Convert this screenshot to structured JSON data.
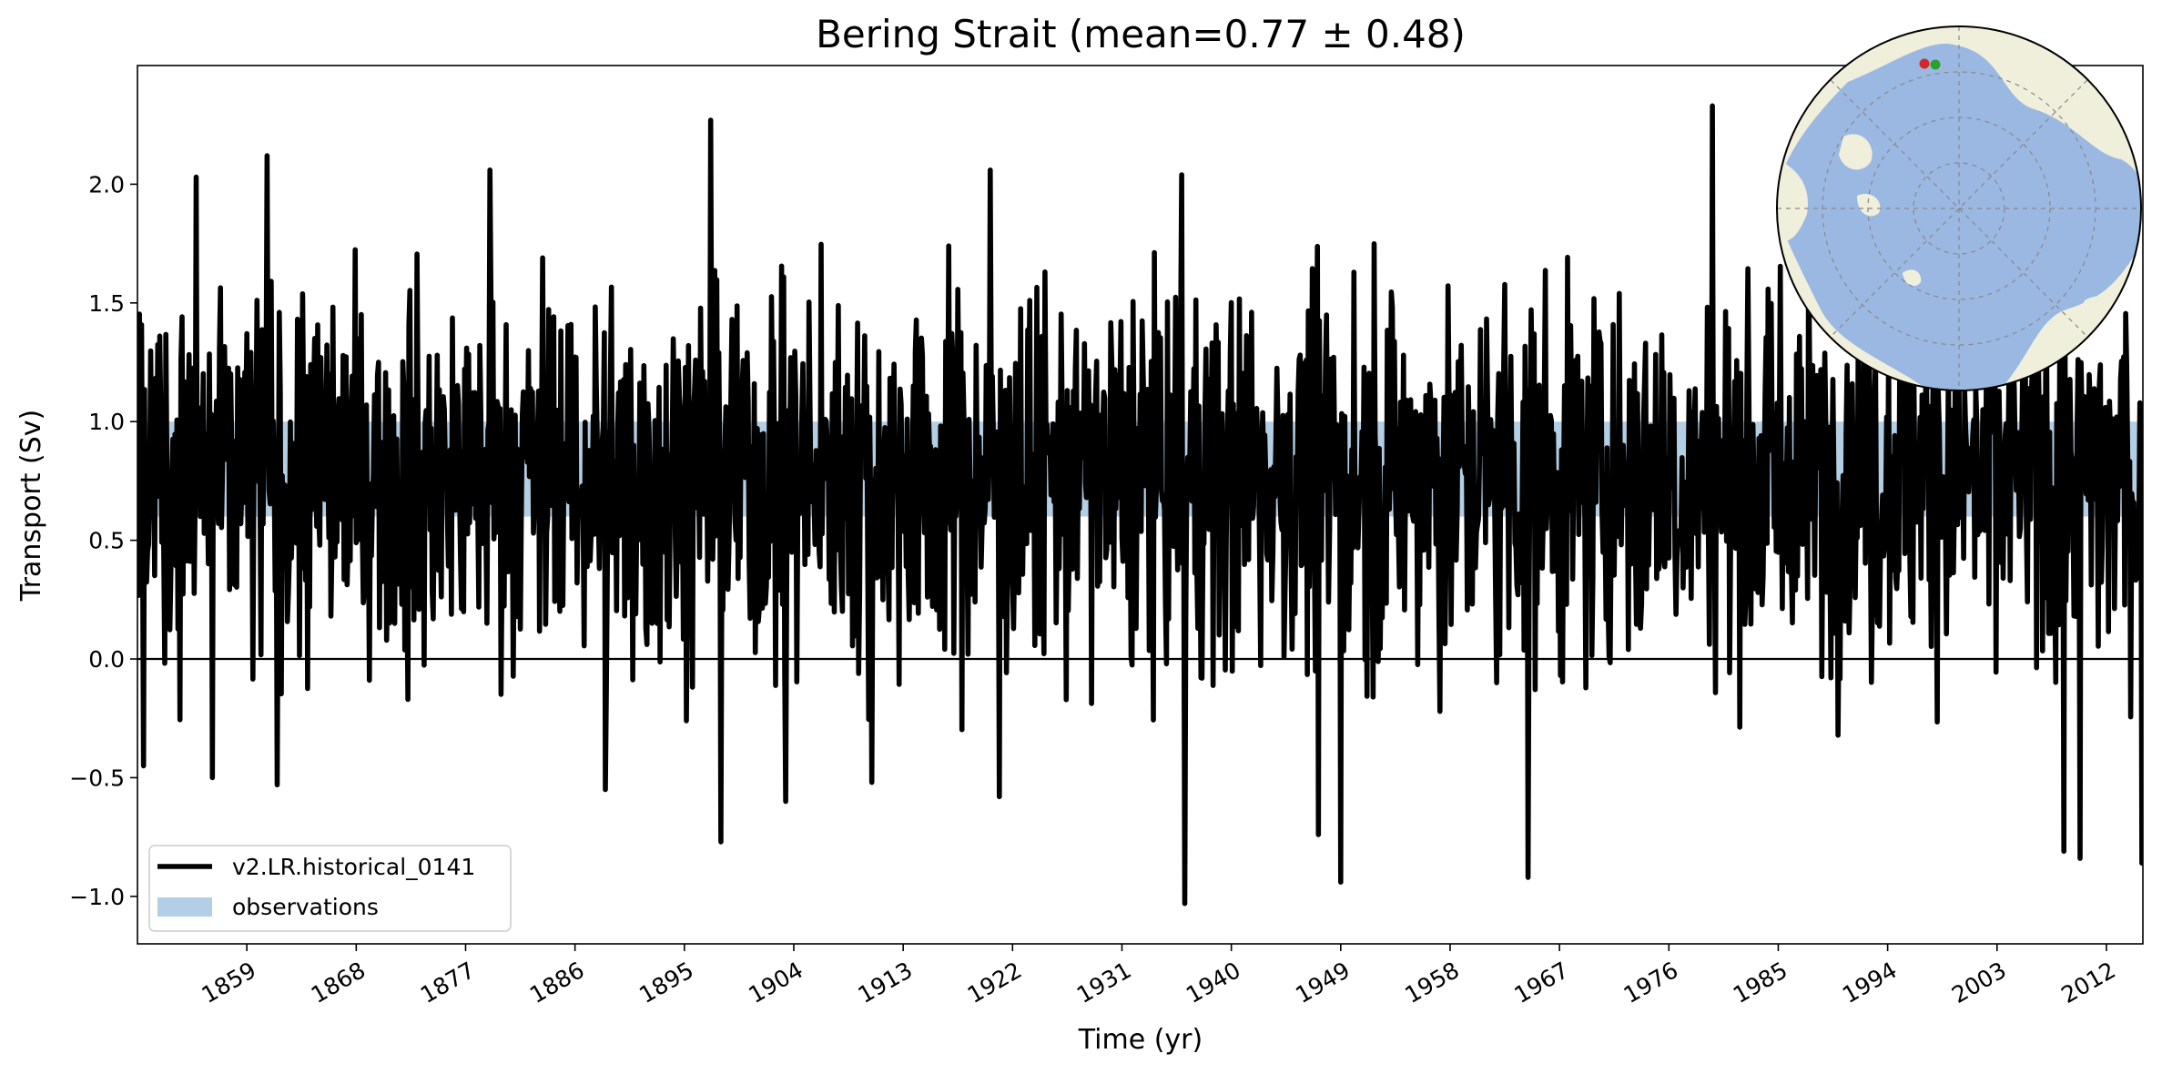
{
  "chart_data": {
    "type": "line",
    "title": "Bering Strait (mean=0.77 ± 0.48)",
    "xlabel": "Time (yr)",
    "ylabel": "Transport (Sv)",
    "xlim": [
      1850,
      2015
    ],
    "ylim": [
      -1.2,
      2.5
    ],
    "yticks": [
      -1.0,
      -0.5,
      0.0,
      0.5,
      1.0,
      1.5,
      2.0
    ],
    "ytick_labels": [
      "−1.0",
      "−0.5",
      "0.0",
      "0.5",
      "1.0",
      "1.5",
      "2.0"
    ],
    "xticks": [
      1859,
      1868,
      1877,
      1886,
      1895,
      1904,
      1913,
      1922,
      1931,
      1940,
      1949,
      1958,
      1967,
      1976,
      1985,
      1994,
      2003,
      2012
    ],
    "xtick_labels": [
      "1859",
      "1868",
      "1877",
      "1886",
      "1895",
      "1904",
      "1913",
      "1922",
      "1931",
      "1940",
      "1949",
      "1958",
      "1967",
      "1976",
      "1985",
      "1994",
      "2003",
      "2012"
    ],
    "zero_line": 0.0,
    "observations_band": {
      "label": "observations",
      "y_low": 0.6,
      "y_high": 1.0,
      "color": "#b3cfe5"
    },
    "series": [
      {
        "name": "v2.LR.historical_0141",
        "color": "#000000",
        "frequency": "monthly",
        "x_start": 1850.0,
        "x_end": 2015.0,
        "mean": 0.77,
        "std": 0.48,
        "notable_points": [
          {
            "x": 1850.5,
            "y": -0.45
          },
          {
            "x": 1854.8,
            "y": 2.03
          },
          {
            "x": 1856.2,
            "y": -0.5
          },
          {
            "x": 1860.7,
            "y": 2.12
          },
          {
            "x": 1861.5,
            "y": -0.53
          },
          {
            "x": 1879.0,
            "y": 2.06
          },
          {
            "x": 1888.5,
            "y": -0.55
          },
          {
            "x": 1897.2,
            "y": 2.27
          },
          {
            "x": 1898.0,
            "y": -0.77
          },
          {
            "x": 1903.3,
            "y": -0.6
          },
          {
            "x": 1910.4,
            "y": -0.52
          },
          {
            "x": 1920.2,
            "y": 2.06
          },
          {
            "x": 1920.9,
            "y": -0.58
          },
          {
            "x": 1935.9,
            "y": 2.04
          },
          {
            "x": 1936.2,
            "y": -1.03
          },
          {
            "x": 1947.2,
            "y": -0.74
          },
          {
            "x": 1949.0,
            "y": -0.94
          },
          {
            "x": 1964.4,
            "y": -0.92
          },
          {
            "x": 1979.6,
            "y": 2.33
          },
          {
            "x": 2008.5,
            "y": -0.81
          },
          {
            "x": 2009.8,
            "y": -0.84
          },
          {
            "x": 2014.9,
            "y": -0.86
          }
        ]
      }
    ],
    "legend": {
      "position": "lower-left",
      "entries": [
        "v2.LR.historical_0141",
        "observations"
      ]
    },
    "inset_map": {
      "position": "top-right",
      "projection": "north-polar",
      "land_color": "#efefdc",
      "ocean_color": "#9bb8e3",
      "markers": [
        {
          "label": "section-start",
          "color": "#d62728"
        },
        {
          "label": "section-end",
          "color": "#2ca02c"
        }
      ]
    }
  }
}
